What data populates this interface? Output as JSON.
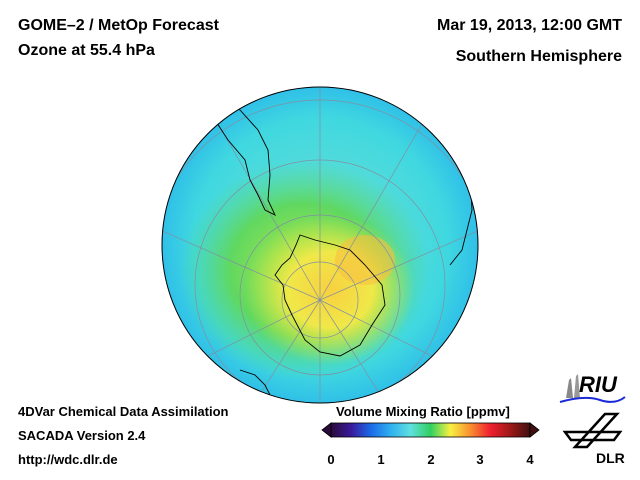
{
  "header": {
    "title_line1": "GOME–2 / MetOp Forecast",
    "title_line2": "Ozone at 55.4 hPa",
    "date": "Mar 19, 2013, 12:00 GMT",
    "region": "Southern Hemisphere"
  },
  "footer": {
    "line1": "4DVar Chemical Data Assimilation",
    "line2": "SACADA Version 2.4",
    "url": "http://wdc.dlr.de"
  },
  "colorbar": {
    "title": "Volume Mixing Ratio [ppmv]",
    "ticks": [
      "0",
      "1",
      "2",
      "3",
      "4"
    ],
    "range": [
      0,
      4
    ],
    "colors": [
      "#2a0a3a",
      "#3a1a9a",
      "#1a6ae8",
      "#30b0f0",
      "#60e0e0",
      "#30d060",
      "#a0e040",
      "#f8f040",
      "#f89030",
      "#f02030",
      "#a01818",
      "#401010"
    ]
  },
  "logos": {
    "riu": "RIU",
    "dlr": "DLR"
  }
}
